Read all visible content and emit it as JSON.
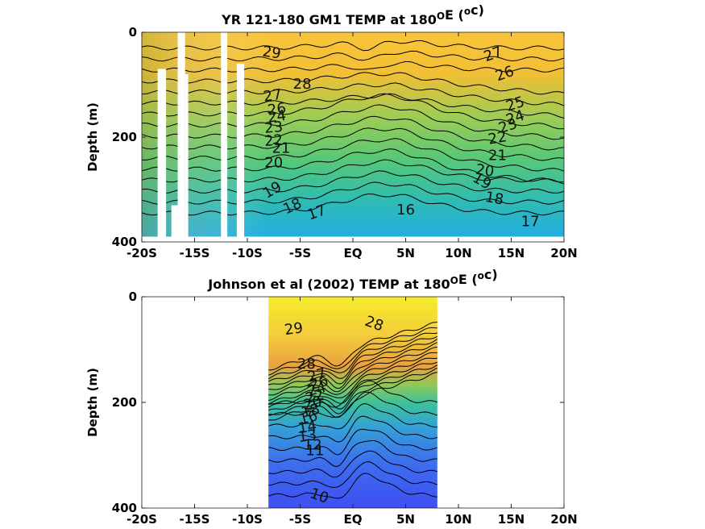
{
  "figure": {
    "colors": {
      "warm": "#f6e33a",
      "mid": "#6fcf6a",
      "teal": "#29b5c4",
      "cool": "#3f4ff2",
      "contour": "#000000",
      "mask": "#ffffff"
    }
  },
  "chart_data": [
    {
      "type": "heatmap",
      "title_main": "YR 121-180 GM1 TEMP at 180",
      "title_sup": "O",
      "title_tail": "E (",
      "title_sup2": "o",
      "title_end": "c)",
      "xlabel": "",
      "ylabel": "Depth (m)",
      "x_ticks": [
        "-20S",
        "-15S",
        "-10S",
        "-5S",
        "EQ",
        "5N",
        "10N",
        "15N",
        "20N"
      ],
      "y_ticks": [
        "0",
        "200",
        "400"
      ],
      "xlim": [
        -20,
        20
      ],
      "ylim": [
        0,
        400
      ],
      "data_extent": [
        -20,
        20
      ],
      "contour_labels": [
        {
          "text": "29",
          "x": -7.7,
          "y": 40,
          "rot": 8
        },
        {
          "text": "28",
          "x": -4.8,
          "y": 100,
          "rot": 0
        },
        {
          "text": "27",
          "x": -7.6,
          "y": 122,
          "rot": -8
        },
        {
          "text": "26",
          "x": -7.2,
          "y": 148,
          "rot": -8
        },
        {
          "text": "24",
          "x": -7.2,
          "y": 162,
          "rot": -8
        },
        {
          "text": "23",
          "x": -7.5,
          "y": 183,
          "rot": -5
        },
        {
          "text": "22",
          "x": -7.5,
          "y": 208,
          "rot": -5
        },
        {
          "text": "21",
          "x": -6.8,
          "y": 222,
          "rot": 0
        },
        {
          "text": "20",
          "x": -7.5,
          "y": 250,
          "rot": 0
        },
        {
          "text": "19",
          "x": -7.6,
          "y": 302,
          "rot": -30
        },
        {
          "text": "18",
          "x": -5.7,
          "y": 333,
          "rot": -25
        },
        {
          "text": "17",
          "x": -3.4,
          "y": 345,
          "rot": -20
        },
        {
          "text": "16",
          "x": 5.0,
          "y": 340,
          "rot": 0
        },
        {
          "text": "27",
          "x": 13.3,
          "y": 43,
          "rot": -20
        },
        {
          "text": "26",
          "x": 14.4,
          "y": 80,
          "rot": -20
        },
        {
          "text": "25",
          "x": 15.4,
          "y": 138,
          "rot": -18
        },
        {
          "text": "24",
          "x": 15.4,
          "y": 164,
          "rot": -18
        },
        {
          "text": "23",
          "x": 14.7,
          "y": 180,
          "rot": -18
        },
        {
          "text": "22",
          "x": 13.7,
          "y": 203,
          "rot": -10
        },
        {
          "text": "21",
          "x": 13.7,
          "y": 236,
          "rot": 0
        },
        {
          "text": "20",
          "x": 12.5,
          "y": 265,
          "rot": 8
        },
        {
          "text": "19",
          "x": 12.2,
          "y": 285,
          "rot": 30
        },
        {
          "text": "18",
          "x": 13.4,
          "y": 318,
          "rot": 10
        },
        {
          "text": "17",
          "x": 16.8,
          "y": 362,
          "rot": 0
        }
      ],
      "masks": [
        {
          "x0": -18.5,
          "x1": -17.7,
          "y0": 70,
          "y1": 390
        },
        {
          "x0": -17.2,
          "x1": -16.6,
          "y0": 330,
          "y1": 390
        },
        {
          "x0": -16.6,
          "x1": -15.9,
          "y0": 0,
          "y1": 390
        },
        {
          "x0": -15.9,
          "x1": -15.6,
          "y0": 80,
          "y1": 390
        },
        {
          "x0": -12.5,
          "x1": -11.9,
          "y0": 0,
          "y1": 390
        },
        {
          "x0": -11.0,
          "x1": -10.3,
          "y0": 60,
          "y1": 390
        }
      ]
    },
    {
      "type": "heatmap",
      "title_main": "Johnson et al (2002) TEMP at 180",
      "title_sup": "O",
      "title_tail": "E (",
      "title_sup2": "o",
      "title_end": "c)",
      "xlabel": "",
      "ylabel": "Depth (m)",
      "x_ticks": [
        "-20S",
        "-15S",
        "-10S",
        "-5S",
        "EQ",
        "5N",
        "10N",
        "15N",
        "20N"
      ],
      "y_ticks": [
        "0",
        "200",
        "400"
      ],
      "xlim": [
        -20,
        20
      ],
      "ylim": [
        0,
        400
      ],
      "data_extent": [
        -8,
        8
      ],
      "contour_labels": [
        {
          "text": "29",
          "x": -5.6,
          "y": 62,
          "rot": -8
        },
        {
          "text": "28",
          "x": 2.0,
          "y": 52,
          "rot": 20
        },
        {
          "text": "28",
          "x": -4.4,
          "y": 128,
          "rot": 0
        },
        {
          "text": "27",
          "x": -3.4,
          "y": 150,
          "rot": -15
        },
        {
          "text": "26",
          "x": -3.2,
          "y": 164,
          "rot": -15
        },
        {
          "text": "24",
          "x": -3.4,
          "y": 176,
          "rot": -15
        },
        {
          "text": "22",
          "x": -3.6,
          "y": 190,
          "rot": -15
        },
        {
          "text": "20",
          "x": -3.8,
          "y": 203,
          "rot": -15
        },
        {
          "text": "18",
          "x": -4.0,
          "y": 217,
          "rot": -15
        },
        {
          "text": "16",
          "x": -4.2,
          "y": 230,
          "rot": -15
        },
        {
          "text": "14",
          "x": -4.3,
          "y": 248,
          "rot": -10
        },
        {
          "text": "13",
          "x": -4.3,
          "y": 265,
          "rot": -8
        },
        {
          "text": "12",
          "x": -3.8,
          "y": 282,
          "rot": 0
        },
        {
          "text": "11",
          "x": -3.6,
          "y": 292,
          "rot": 0
        },
        {
          "text": "10",
          "x": -3.2,
          "y": 378,
          "rot": 20
        }
      ],
      "masks": []
    }
  ]
}
